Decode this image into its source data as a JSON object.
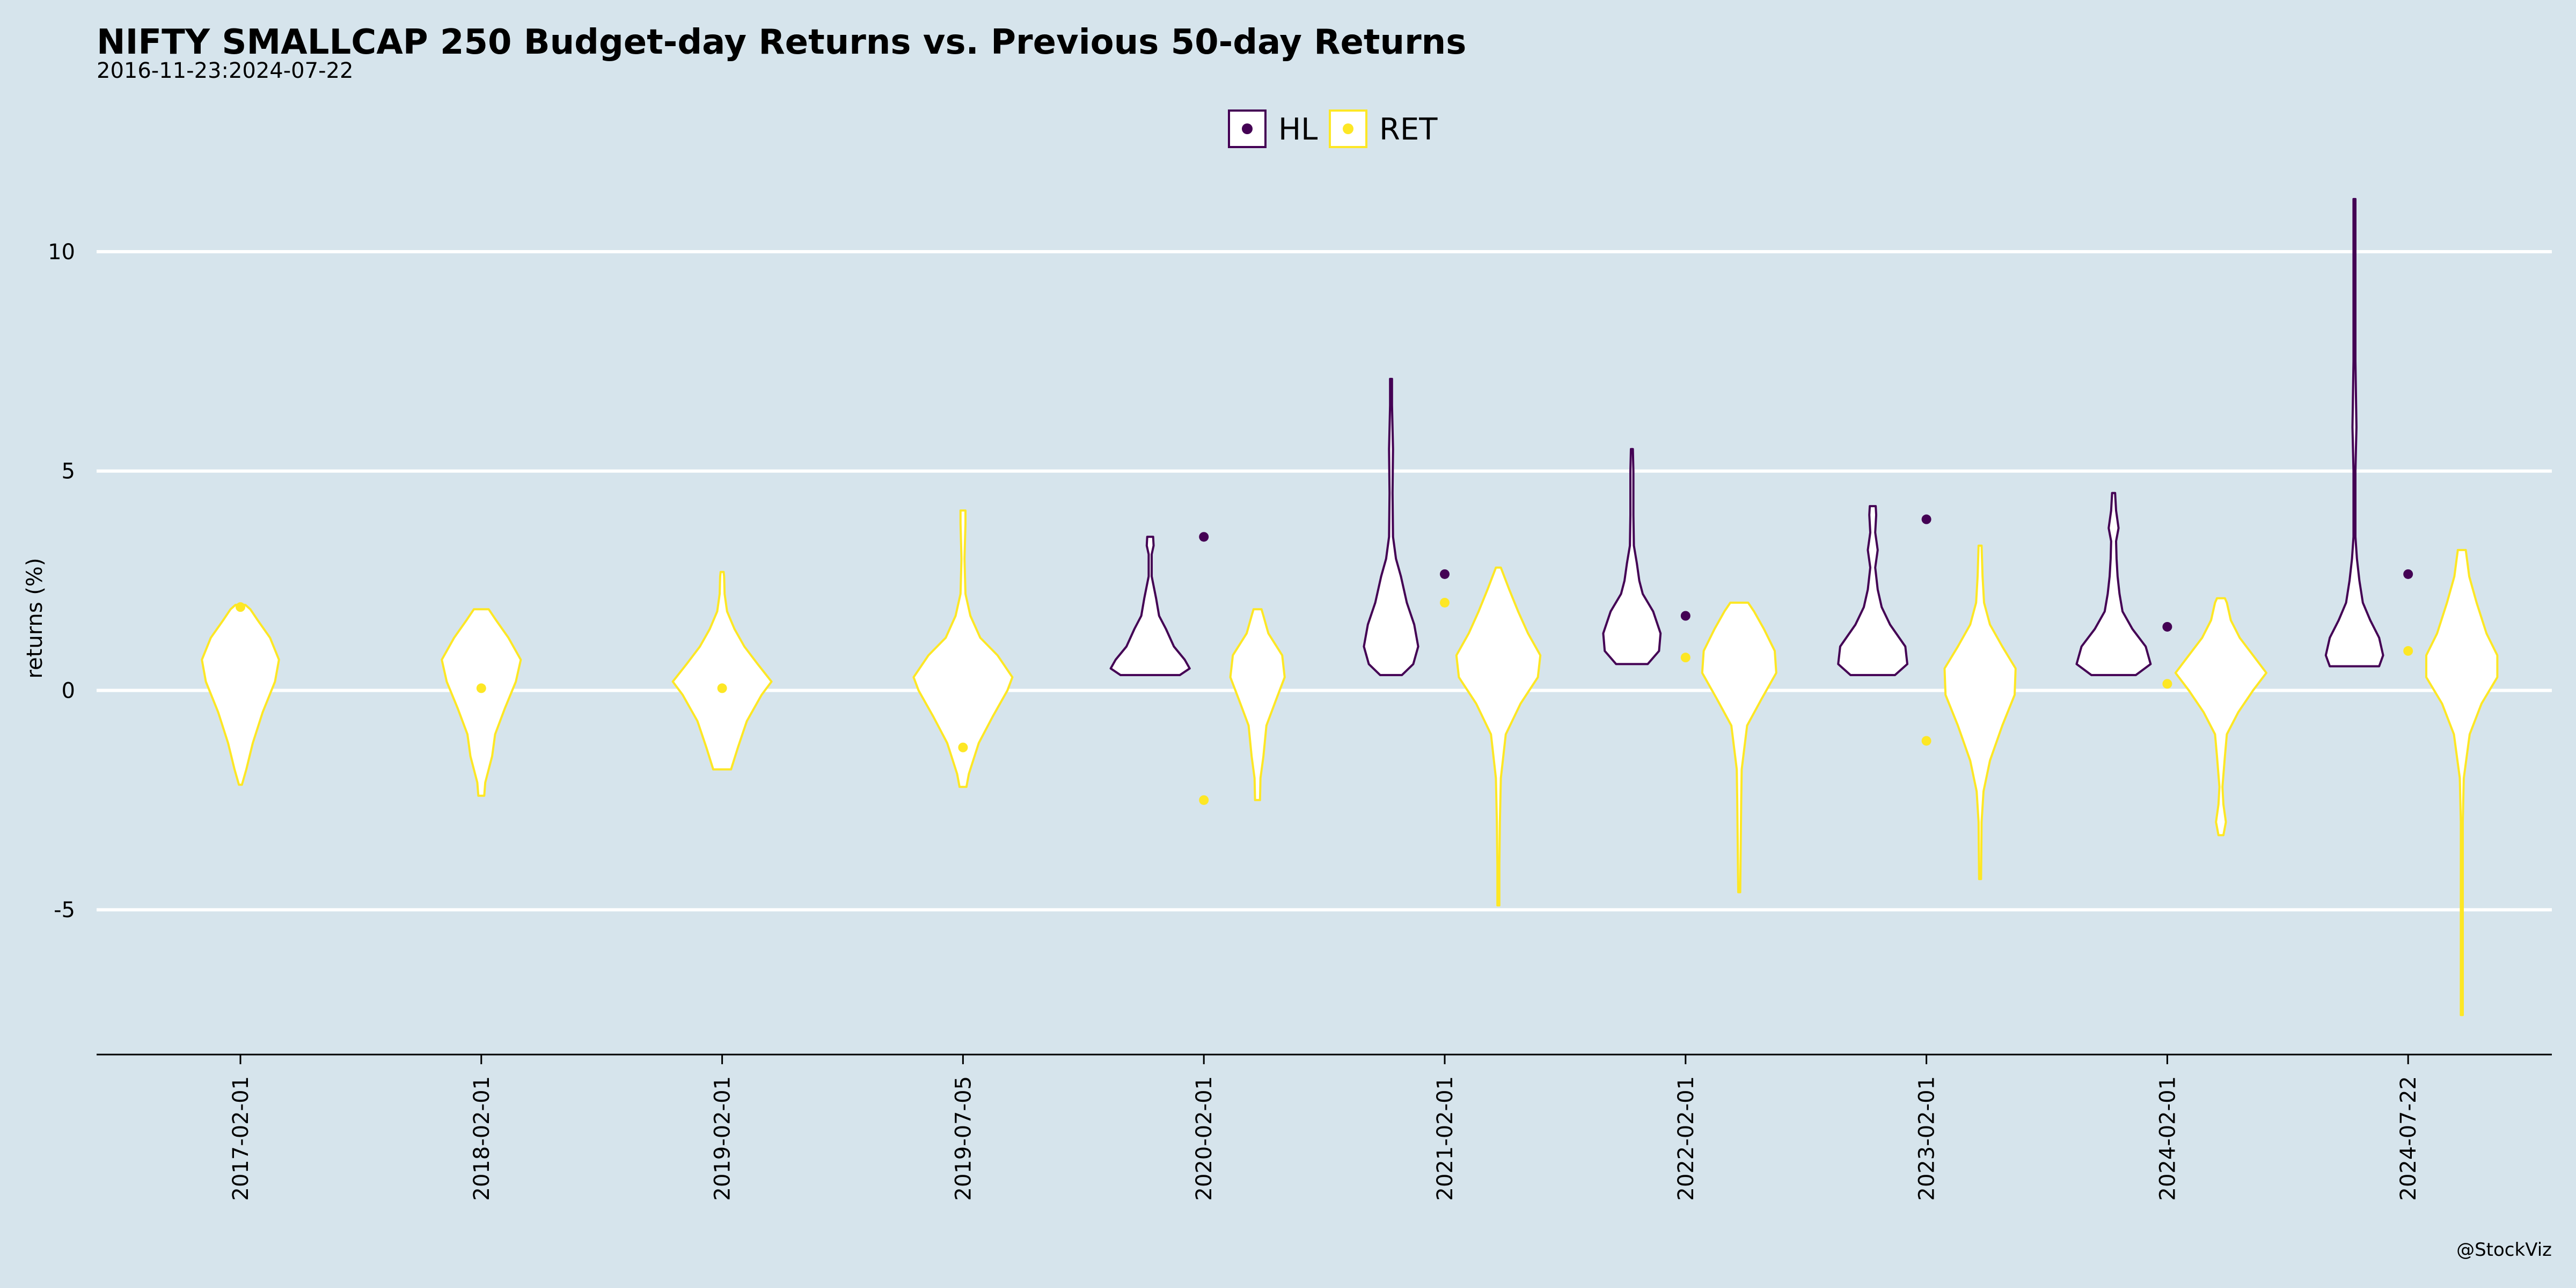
{
  "chart_data": {
    "type": "violin",
    "title": "NIFTY SMALLCAP 250 Budget-day Returns vs. Previous 50-day Returns",
    "subtitle": "2016-11-23:2024-07-22",
    "ylabel": "returns (%)",
    "xlabel": "",
    "caption": "@StockViz",
    "ylim": [
      -8.3,
      11.7
    ],
    "yticks": [
      -5,
      0,
      5,
      10
    ],
    "ytick_labels": [
      "-5",
      "0",
      "5",
      "10"
    ],
    "grid": "horizontal",
    "legend_position": "top",
    "legend": [
      {
        "key": "HL",
        "label": "HL",
        "color": "#440154"
      },
      {
        "key": "RET",
        "label": "RET",
        "color": "#fde725"
      }
    ],
    "categories": [
      "2017-02-01",
      "2018-02-01",
      "2019-02-01",
      "2019-07-05",
      "2020-02-01",
      "2021-02-01",
      "2022-02-01",
      "2023-02-01",
      "2024-02-01",
      "2024-07-22"
    ],
    "budget_day_points": {
      "HL": [
        null,
        null,
        null,
        null,
        3.5,
        2.65,
        1.7,
        3.9,
        1.45,
        2.65
      ],
      "RET": [
        1.9,
        0.05,
        0.05,
        -1.3,
        -2.5,
        2.0,
        0.75,
        -1.15,
        0.15,
        0.9
      ]
    },
    "violins": {
      "HL": [
        null,
        null,
        null,
        null,
        {
          "profile": [
            [
              0.35,
              0.6
            ],
            [
              0.5,
              0.8
            ],
            [
              0.7,
              0.7
            ],
            [
              1.0,
              0.48
            ],
            [
              1.4,
              0.32
            ],
            [
              1.7,
              0.18
            ],
            [
              2.1,
              0.12
            ],
            [
              2.6,
              0.03
            ],
            [
              3.1,
              0.03
            ],
            [
              3.3,
              0.07
            ],
            [
              3.5,
              0.06
            ]
          ]
        },
        {
          "profile": [
            [
              0.35,
              0.22
            ],
            [
              0.6,
              0.45
            ],
            [
              1.0,
              0.55
            ],
            [
              1.5,
              0.47
            ],
            [
              2.0,
              0.32
            ],
            [
              2.6,
              0.2
            ],
            [
              3.0,
              0.1
            ],
            [
              3.5,
              0.04
            ],
            [
              4.5,
              0.03
            ],
            [
              5.5,
              0.04
            ],
            [
              6.5,
              0.02
            ],
            [
              7.1,
              0.02
            ]
          ]
        },
        {
          "profile": [
            [
              0.6,
              0.32
            ],
            [
              0.9,
              0.55
            ],
            [
              1.3,
              0.58
            ],
            [
              1.8,
              0.43
            ],
            [
              2.2,
              0.22
            ],
            [
              2.5,
              0.15
            ],
            [
              2.9,
              0.1
            ],
            [
              3.3,
              0.04
            ],
            [
              4.0,
              0.03
            ],
            [
              5.0,
              0.03
            ],
            [
              5.5,
              0.02
            ]
          ]
        },
        {
          "profile": [
            [
              0.35,
              0.45
            ],
            [
              0.6,
              0.7
            ],
            [
              1.0,
              0.66
            ],
            [
              1.5,
              0.35
            ],
            [
              1.9,
              0.18
            ],
            [
              2.3,
              0.1
            ],
            [
              2.8,
              0.05
            ],
            [
              3.2,
              0.1
            ],
            [
              3.6,
              0.05
            ],
            [
              4.0,
              0.07
            ],
            [
              4.2,
              0.06
            ]
          ]
        },
        {
          "profile": [
            [
              0.35,
              0.45
            ],
            [
              0.6,
              0.75
            ],
            [
              1.0,
              0.65
            ],
            [
              1.4,
              0.38
            ],
            [
              1.8,
              0.18
            ],
            [
              2.2,
              0.12
            ],
            [
              2.6,
              0.08
            ],
            [
              3.0,
              0.06
            ],
            [
              3.4,
              0.05
            ],
            [
              3.7,
              0.1
            ],
            [
              4.1,
              0.05
            ],
            [
              4.5,
              0.03
            ]
          ]
        },
        {
          "profile": [
            [
              0.55,
              0.5
            ],
            [
              0.8,
              0.58
            ],
            [
              1.2,
              0.5
            ],
            [
              1.6,
              0.32
            ],
            [
              2.0,
              0.17
            ],
            [
              2.5,
              0.1
            ],
            [
              3.0,
              0.05
            ],
            [
              3.5,
              0.02
            ],
            [
              5.0,
              0.02
            ],
            [
              6.0,
              0.04
            ],
            [
              7.5,
              0.02
            ],
            [
              9.5,
              0.02
            ],
            [
              11.2,
              0.02
            ]
          ]
        }
      ],
      "RET": [
        {
          "profile": [
            [
              -2.15,
              0.03
            ],
            [
              -1.8,
              0.12
            ],
            [
              -1.2,
              0.25
            ],
            [
              -0.5,
              0.45
            ],
            [
              0.2,
              0.7
            ],
            [
              0.7,
              0.78
            ],
            [
              1.2,
              0.6
            ],
            [
              1.6,
              0.35
            ],
            [
              1.85,
              0.2
            ],
            [
              1.95,
              0.1
            ]
          ]
        },
        {
          "profile": [
            [
              -2.4,
              0.06
            ],
            [
              -2.1,
              0.08
            ],
            [
              -1.5,
              0.22
            ],
            [
              -1.0,
              0.28
            ],
            [
              -0.4,
              0.48
            ],
            [
              0.2,
              0.7
            ],
            [
              0.7,
              0.8
            ],
            [
              1.2,
              0.55
            ],
            [
              1.6,
              0.3
            ],
            [
              1.85,
              0.15
            ]
          ]
        },
        {
          "profile": [
            [
              -1.8,
              0.18
            ],
            [
              -1.3,
              0.32
            ],
            [
              -0.7,
              0.5
            ],
            [
              -0.1,
              0.8
            ],
            [
              0.2,
              1.0
            ],
            [
              0.6,
              0.72
            ],
            [
              1.0,
              0.45
            ],
            [
              1.4,
              0.25
            ],
            [
              1.8,
              0.1
            ],
            [
              2.2,
              0.05
            ],
            [
              2.6,
              0.04
            ],
            [
              2.7,
              0.03
            ]
          ]
        },
        {
          "profile": [
            [
              -2.2,
              0.07
            ],
            [
              -1.9,
              0.12
            ],
            [
              -1.2,
              0.32
            ],
            [
              -0.6,
              0.6
            ],
            [
              0.0,
              0.9
            ],
            [
              0.3,
              1.0
            ],
            [
              0.8,
              0.7
            ],
            [
              1.2,
              0.35
            ],
            [
              1.7,
              0.15
            ],
            [
              2.2,
              0.05
            ],
            [
              3.0,
              0.03
            ],
            [
              3.8,
              0.05
            ],
            [
              4.1,
              0.05
            ]
          ]
        },
        {
          "profile": [
            [
              -2.5,
              0.05
            ],
            [
              -2.0,
              0.06
            ],
            [
              -1.5,
              0.12
            ],
            [
              -0.8,
              0.18
            ],
            [
              -0.2,
              0.38
            ],
            [
              0.3,
              0.55
            ],
            [
              0.8,
              0.5
            ],
            [
              1.3,
              0.22
            ],
            [
              1.7,
              0.12
            ],
            [
              1.85,
              0.08
            ]
          ]
        },
        {
          "profile": [
            [
              -4.9,
              0.02
            ],
            [
              -4.0,
              0.02
            ],
            [
              -3.0,
              0.03
            ],
            [
              -2.0,
              0.05
            ],
            [
              -1.0,
              0.15
            ],
            [
              -0.3,
              0.45
            ],
            [
              0.3,
              0.8
            ],
            [
              0.8,
              0.85
            ],
            [
              1.3,
              0.6
            ],
            [
              1.8,
              0.4
            ],
            [
              2.3,
              0.22
            ],
            [
              2.8,
              0.05
            ]
          ]
        },
        {
          "profile": [
            [
              -4.6,
              0.02
            ],
            [
              -3.5,
              0.03
            ],
            [
              -2.5,
              0.04
            ],
            [
              -1.8,
              0.05
            ],
            [
              -0.8,
              0.16
            ],
            [
              -0.2,
              0.45
            ],
            [
              0.4,
              0.75
            ],
            [
              0.9,
              0.72
            ],
            [
              1.4,
              0.5
            ],
            [
              1.8,
              0.3
            ],
            [
              2.0,
              0.18
            ]
          ]
        },
        {
          "profile": [
            [
              -4.3,
              0.02
            ],
            [
              -3.0,
              0.03
            ],
            [
              -2.3,
              0.07
            ],
            [
              -1.6,
              0.2
            ],
            [
              -0.8,
              0.45
            ],
            [
              -0.1,
              0.7
            ],
            [
              0.5,
              0.72
            ],
            [
              1.0,
              0.45
            ],
            [
              1.5,
              0.2
            ],
            [
              2.0,
              0.08
            ],
            [
              2.6,
              0.05
            ],
            [
              3.3,
              0.03
            ]
          ]
        },
        {
          "profile": [
            [
              -3.3,
              0.05
            ],
            [
              -3.0,
              0.1
            ],
            [
              -2.6,
              0.05
            ],
            [
              -2.2,
              0.03
            ],
            [
              -1.5,
              0.08
            ],
            [
              -1.0,
              0.12
            ],
            [
              -0.5,
              0.35
            ],
            [
              0.0,
              0.65
            ],
            [
              0.4,
              0.92
            ],
            [
              0.8,
              0.65
            ],
            [
              1.2,
              0.38
            ],
            [
              1.6,
              0.2
            ],
            [
              2.0,
              0.12
            ],
            [
              2.1,
              0.08
            ]
          ]
        },
        {
          "profile": [
            [
              -7.4,
              0.02
            ],
            [
              -6.0,
              0.02
            ],
            [
              -4.5,
              0.02
            ],
            [
              -3.0,
              0.02
            ],
            [
              -2.0,
              0.04
            ],
            [
              -1.0,
              0.16
            ],
            [
              -0.3,
              0.4
            ],
            [
              0.3,
              0.72
            ],
            [
              0.8,
              0.72
            ],
            [
              1.3,
              0.5
            ],
            [
              2.0,
              0.3
            ],
            [
              2.6,
              0.15
            ],
            [
              3.2,
              0.08
            ]
          ]
        }
      ]
    }
  }
}
